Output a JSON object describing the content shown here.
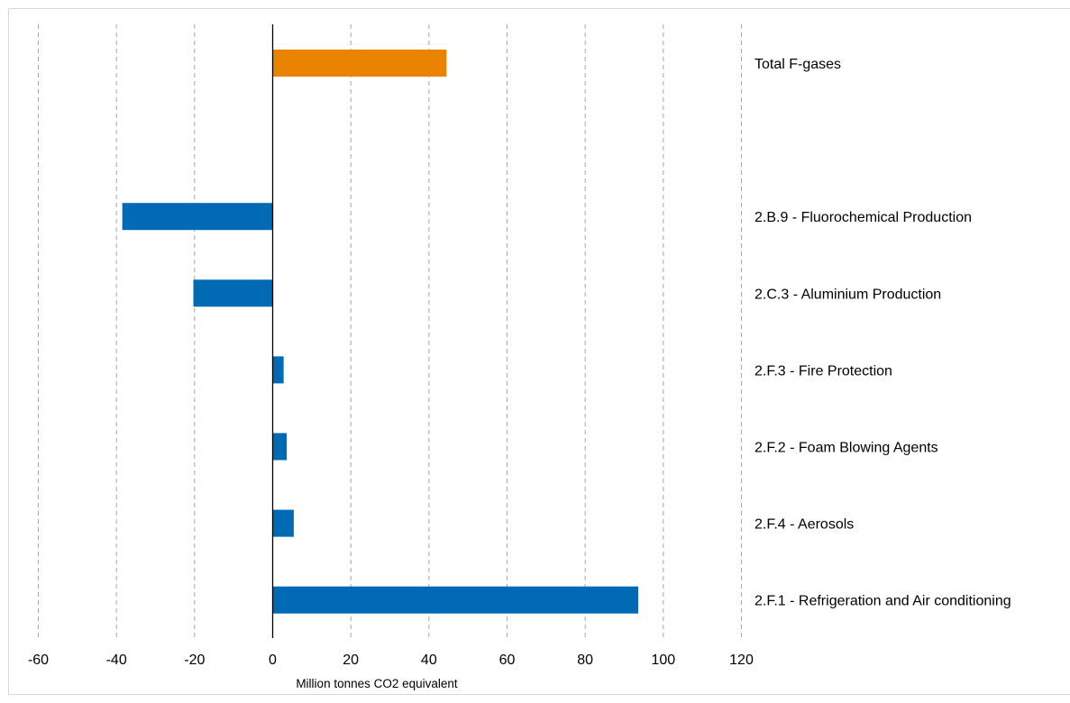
{
  "chart_data": {
    "type": "bar",
    "orientation": "horizontal",
    "title": "",
    "xlabel": "Million tonnes CO2 equivalent",
    "ylabel": "",
    "xlim": [
      -60,
      120
    ],
    "xticks": [
      -60,
      -40,
      -20,
      0,
      20,
      40,
      60,
      80,
      100,
      120
    ],
    "grid": "vertical-dashed",
    "categories": [
      "Total F-gases",
      "",
      "2.B.9 - Fluorochemical Production",
      "2.C.3 - Aluminium Production",
      "2.F.3 - Fire Protection",
      "2.F.2 - Foam Blowing Agents",
      "2.F.4 - Aerosols",
      "2.F.1 - Refrigeration and Air conditioning"
    ],
    "values": [
      44.5,
      null,
      -38.5,
      -20.3,
      2.8,
      3.6,
      5.4,
      93.6
    ],
    "bar_colors": [
      "#e98300",
      null,
      "#006ab5",
      "#006ab5",
      "#006ab5",
      "#006ab5",
      "#006ab5",
      "#006ab5"
    ],
    "colors": {
      "total": "#e98300",
      "category": "#006ab5",
      "grid": "#a6a6a6",
      "zero_line": "#000000"
    }
  }
}
